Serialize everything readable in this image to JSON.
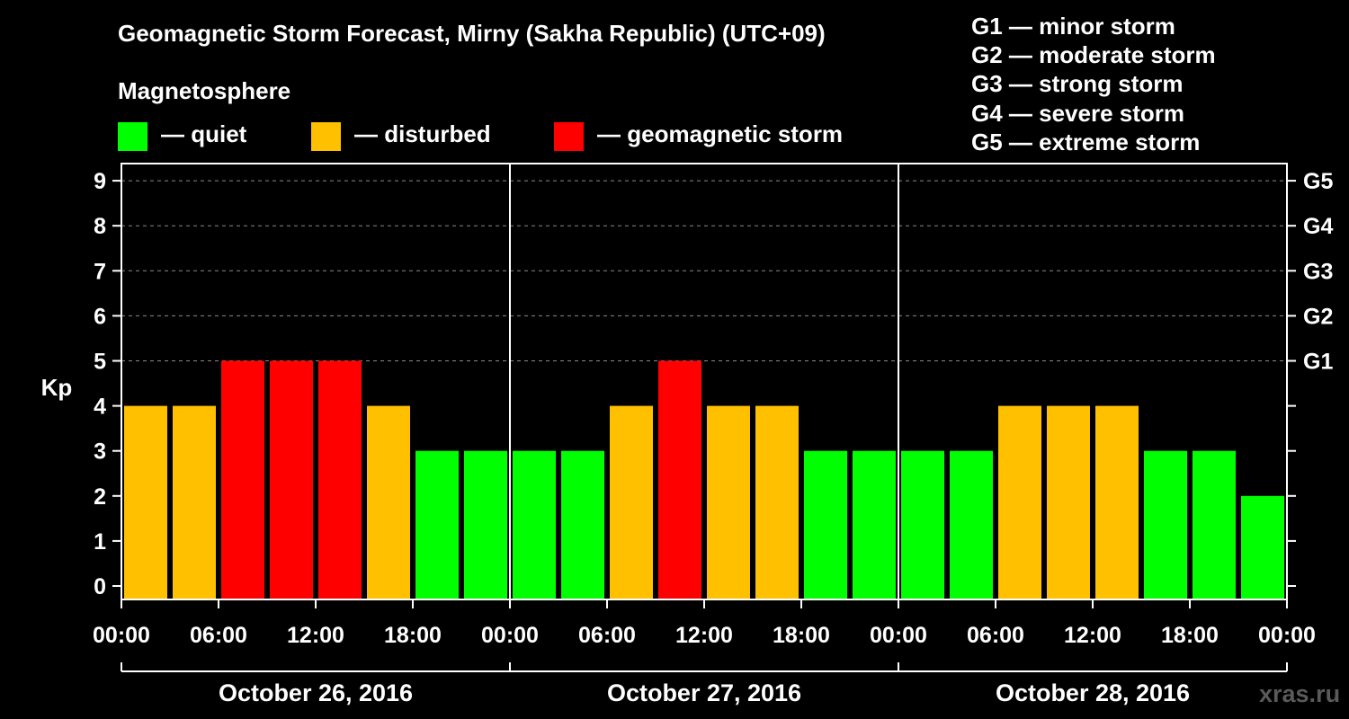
{
  "title": "Geomagnetic Storm Forecast, Mirny (Sakha Republic) (UTC+09)",
  "subtitle": "Magnetosphere",
  "legend": [
    {
      "label": "— quiet",
      "color": "#00ff00"
    },
    {
      "label": "— disturbed",
      "color": "#ffc000"
    },
    {
      "label": "— geomagnetic storm",
      "color": "#ff0000"
    }
  ],
  "storm_scale": [
    "G1 — minor storm",
    "G2 — moderate storm",
    "G3 — strong storm",
    "G4 — severe storm",
    "G5 — extreme storm"
  ],
  "watermark": "xras.ru",
  "chart_data": {
    "type": "bar",
    "title": "Geomagnetic Storm Forecast, Mirny (Sakha Republic) (UTC+09)",
    "ylabel": "Kp",
    "ylim": [
      0,
      9
    ],
    "yticks": [
      "0",
      "1",
      "2",
      "3",
      "4",
      "5",
      "6",
      "7",
      "8",
      "9"
    ],
    "right_ticks": [
      {
        "kp": 5,
        "label": "G1"
      },
      {
        "kp": 6,
        "label": "G2"
      },
      {
        "kp": 7,
        "label": "G3"
      },
      {
        "kp": 8,
        "label": "G4"
      },
      {
        "kp": 9,
        "label": "G5"
      }
    ],
    "xtick_labels": [
      "00:00",
      "06:00",
      "12:00",
      "18:00",
      "00:00",
      "06:00",
      "12:00",
      "18:00",
      "00:00",
      "06:00",
      "12:00",
      "18:00",
      "00:00"
    ],
    "days": [
      "October 26, 2016",
      "October 27, 2016",
      "October 28, 2016"
    ],
    "interval_hours": 3,
    "values": [
      4,
      4,
      5,
      5,
      5,
      4,
      3,
      3,
      3,
      3,
      4,
      5,
      4,
      4,
      3,
      3,
      3,
      3,
      4,
      4,
      4,
      3,
      3,
      2
    ],
    "color_rule": {
      "quiet_max": 3,
      "disturbed": 4,
      "storm_min": 5
    },
    "grid": "dashed horizontal at each Kp from 5 to 9",
    "legend_position": "top-left"
  }
}
